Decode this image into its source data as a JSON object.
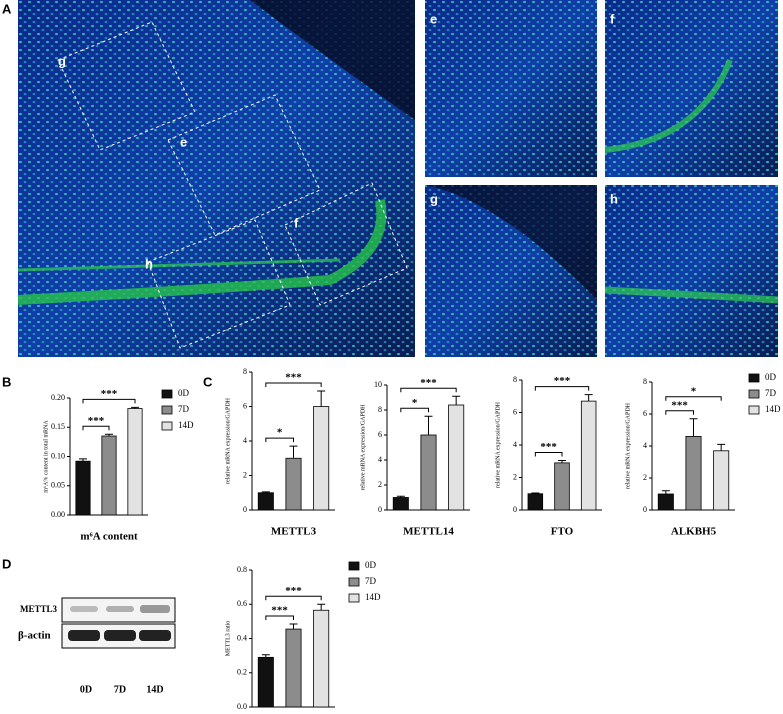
{
  "figure": {
    "panels": [
      "A",
      "B",
      "C",
      "D"
    ],
    "image_labels": [
      "g",
      "e",
      "f",
      "h",
      "e",
      "f",
      "g",
      "h"
    ],
    "blot": {
      "rows": [
        "METTL3",
        "β-actin"
      ],
      "lanes": [
        "0D",
        "7D",
        "14D"
      ]
    }
  },
  "chart_data": [
    {
      "type": "bar",
      "ylabel": "m⁶A% content in total mRNA",
      "xlabel": "m⁶A content",
      "categories": [
        "0D",
        "7D",
        "14D"
      ],
      "colors": [
        "#111111",
        "#8c8c8c",
        "#e2e2e2"
      ],
      "values": [
        0.092,
        0.135,
        0.182
      ],
      "errors": [
        0.004,
        0.003,
        0.002
      ],
      "ylim": [
        0,
        0.2
      ],
      "yticks": [
        {
          "value": 0,
          "label": "0.00"
        },
        0.05,
        {
          "value": 0.1,
          "label": "0.10"
        },
        0.15,
        {
          "value": 0.2,
          "label": "0.20"
        }
      ],
      "annotations": [
        {
          "text": "***",
          "bars": [
            0,
            1
          ]
        },
        {
          "text": "***",
          "bars": [
            0,
            2
          ]
        }
      ],
      "legend": "right"
    },
    {
      "type": "bar",
      "ylabel": "relative mRNA expression/GAPDH",
      "xlabel": "METTL3",
      "colors": [
        "#111111",
        "#8c8c8c",
        "#e2e2e2"
      ],
      "values": [
        1.0,
        3.0,
        6.0
      ],
      "errors": [
        0.05,
        0.7,
        0.9
      ],
      "ylim": [
        0,
        8
      ],
      "yticks": [
        0,
        2,
        4,
        6,
        8
      ],
      "annotations": [
        {
          "text": "*",
          "bars": [
            0,
            1
          ]
        },
        {
          "text": "***",
          "bars": [
            0,
            2
          ]
        }
      ]
    },
    {
      "type": "bar",
      "ylabel": "relative mRNA expression/GAPDH",
      "xlabel": "METTL14",
      "colors": [
        "#111111",
        "#8c8c8c",
        "#e2e2e2"
      ],
      "values": [
        1.0,
        6.0,
        8.4
      ],
      "errors": [
        0.1,
        1.5,
        0.7
      ],
      "ylim": [
        0,
        10
      ],
      "yticks": [
        0,
        2,
        4,
        6,
        8,
        10
      ],
      "annotations": [
        {
          "text": "*",
          "bars": [
            0,
            1
          ]
        },
        {
          "text": "***",
          "bars": [
            0,
            2
          ]
        }
      ]
    },
    {
      "type": "bar",
      "ylabel": "relative mRNA expression/GAPDH",
      "xlabel": "FTO",
      "colors": [
        "#111111",
        "#8c8c8c",
        "#e2e2e2"
      ],
      "values": [
        1.0,
        2.9,
        6.7
      ],
      "errors": [
        0.05,
        0.15,
        0.4
      ],
      "ylim": [
        0,
        8
      ],
      "yticks": [
        0,
        2,
        4,
        6,
        8
      ],
      "annotations": [
        {
          "text": "***",
          "bars": [
            0,
            1
          ]
        },
        {
          "text": "***",
          "bars": [
            0,
            2
          ]
        }
      ]
    },
    {
      "type": "bar",
      "ylabel": "relative mRNA expression/GAPDH",
      "xlabel": "ALKBH5",
      "categories": [
        "0D",
        "7D",
        "14D"
      ],
      "colors": [
        "#111111",
        "#8c8c8c",
        "#e2e2e2"
      ],
      "values": [
        1.0,
        4.6,
        3.7
      ],
      "errors": [
        0.2,
        1.1,
        0.4
      ],
      "ylim": [
        0,
        8
      ],
      "yticks": [
        0,
        2,
        4,
        6,
        8
      ],
      "annotations": [
        {
          "text": "***",
          "bars": [
            0,
            1
          ]
        },
        {
          "text": "*",
          "bars": [
            0,
            2
          ]
        }
      ],
      "legend": "right"
    },
    {
      "type": "bar",
      "ylabel": "METTL3 ratio",
      "categories": [
        "0D",
        "7D",
        "14D"
      ],
      "colors": [
        "#111111",
        "#8c8c8c",
        "#e2e2e2"
      ],
      "values": [
        0.29,
        0.455,
        0.565
      ],
      "errors": [
        0.015,
        0.03,
        0.035
      ],
      "ylim": [
        0,
        0.8
      ],
      "yticks": [
        {
          "value": 0,
          "label": "0.0"
        },
        0.2,
        0.4,
        0.6,
        0.8
      ],
      "annotations": [
        {
          "text": "***",
          "bars": [
            0,
            1
          ]
        },
        {
          "text": "***",
          "bars": [
            0,
            2
          ]
        }
      ],
      "legend": "right"
    }
  ]
}
